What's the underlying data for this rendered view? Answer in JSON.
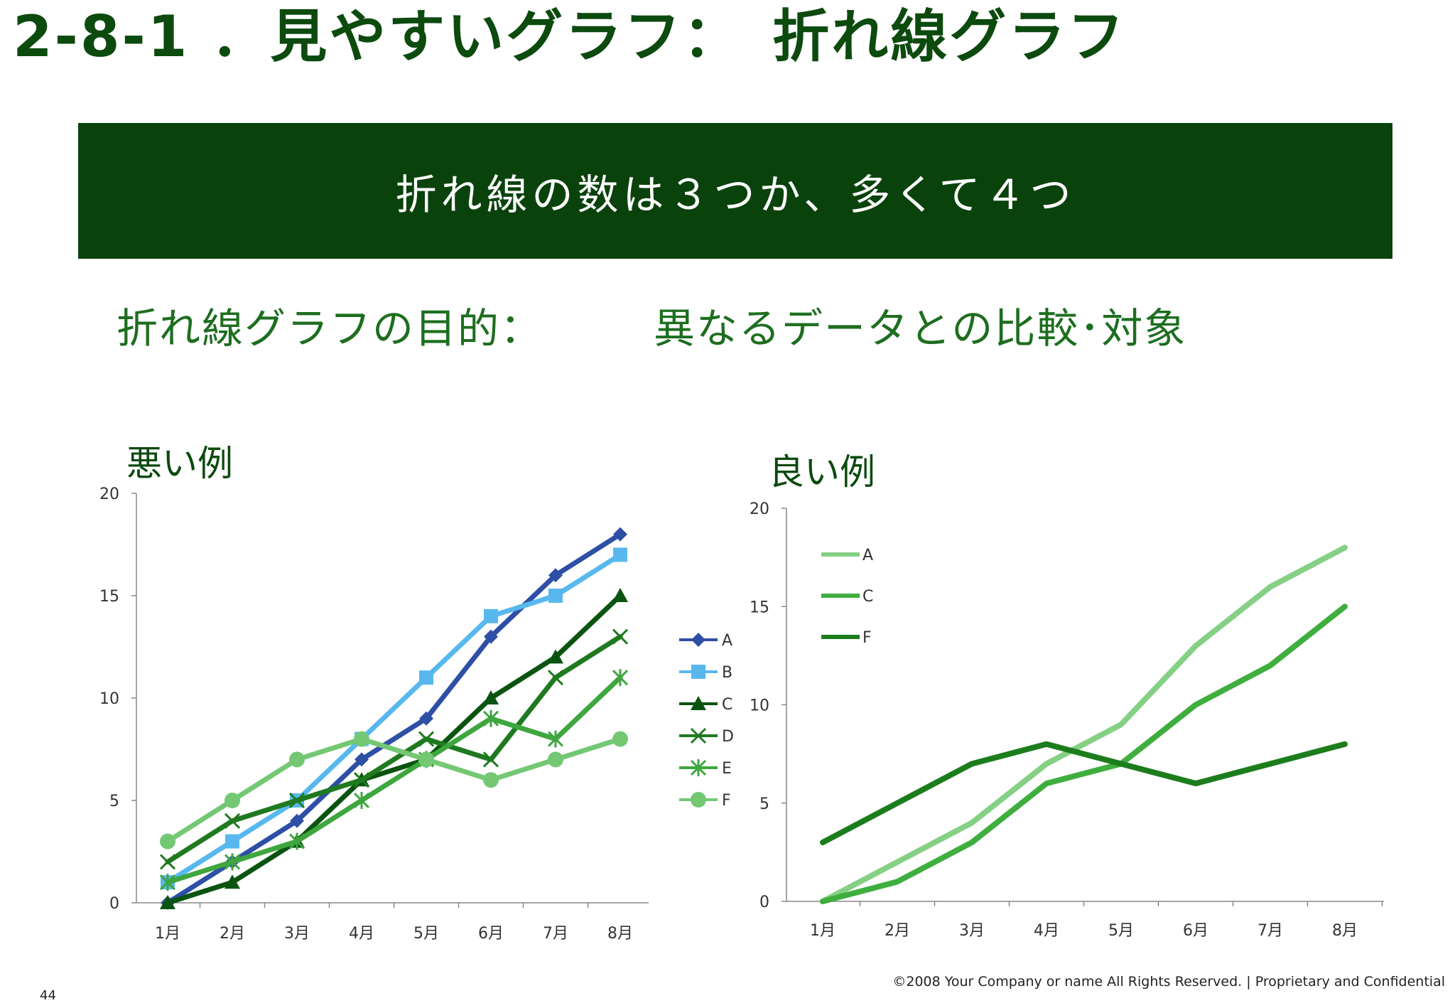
{
  "slide": {
    "title": "2-8-1 ．見やすいグラフ：　折れ線グラフ",
    "banner": "折れ線の数は３つか、多くて４つ",
    "purpose_label": "折れ線グラフの目的：",
    "purpose_value": "異なるデータとの比較･対象",
    "bad_label": "悪い例",
    "good_label": "良い例",
    "page_number": "44",
    "copyright": "©2008 Your Company or name  All Rights Reserved. | Proprietary and Confidential"
  },
  "chart_data": [
    {
      "type": "line",
      "categories": [
        "1月",
        "2月",
        "3月",
        "4月",
        "5月",
        "6月",
        "7月",
        "8月"
      ],
      "ylim": [
        0,
        20
      ],
      "yticks": [
        "0",
        "5",
        "10",
        "15",
        "20"
      ],
      "legend_position": "right",
      "grid": false,
      "series": [
        {
          "name": "A",
          "values": [
            0,
            2,
            4,
            7,
            9,
            13,
            16,
            18
          ],
          "color": "#2e4fa6",
          "marker": "diamond"
        },
        {
          "name": "B",
          "values": [
            1,
            3,
            5,
            8,
            11,
            14,
            15,
            17
          ],
          "color": "#58b8ee",
          "marker": "square"
        },
        {
          "name": "C",
          "values": [
            0,
            1,
            3,
            6,
            7,
            10,
            12,
            15
          ],
          "color": "#0a5410",
          "marker": "triangle"
        },
        {
          "name": "D",
          "values": [
            2,
            4,
            5,
            6,
            8,
            7,
            11,
            13
          ],
          "color": "#1f7a1f",
          "marker": "x"
        },
        {
          "name": "E",
          "values": [
            1,
            2,
            3,
            5,
            7,
            9,
            8,
            11
          ],
          "color": "#3ea63e",
          "marker": "star"
        },
        {
          "name": "F",
          "values": [
            3,
            5,
            7,
            8,
            7,
            6,
            7,
            8
          ],
          "color": "#74c874",
          "marker": "circle"
        }
      ]
    },
    {
      "type": "line",
      "categories": [
        "1月",
        "2月",
        "3月",
        "4月",
        "5月",
        "6月",
        "7月",
        "8月"
      ],
      "ylim": [
        0,
        20
      ],
      "yticks": [
        "0",
        "5",
        "10",
        "15",
        "20"
      ],
      "legend_position": "top-left",
      "grid": false,
      "series": [
        {
          "name": "A",
          "values": [
            0,
            2,
            4,
            7,
            9,
            13,
            16,
            18
          ],
          "color": "#86d086"
        },
        {
          "name": "C",
          "values": [
            0,
            1,
            3,
            6,
            7,
            10,
            12,
            15
          ],
          "color": "#3fae3f"
        },
        {
          "name": "F",
          "values": [
            3,
            5,
            7,
            8,
            7,
            6,
            7,
            8
          ],
          "color": "#1c7d1c"
        }
      ]
    }
  ]
}
